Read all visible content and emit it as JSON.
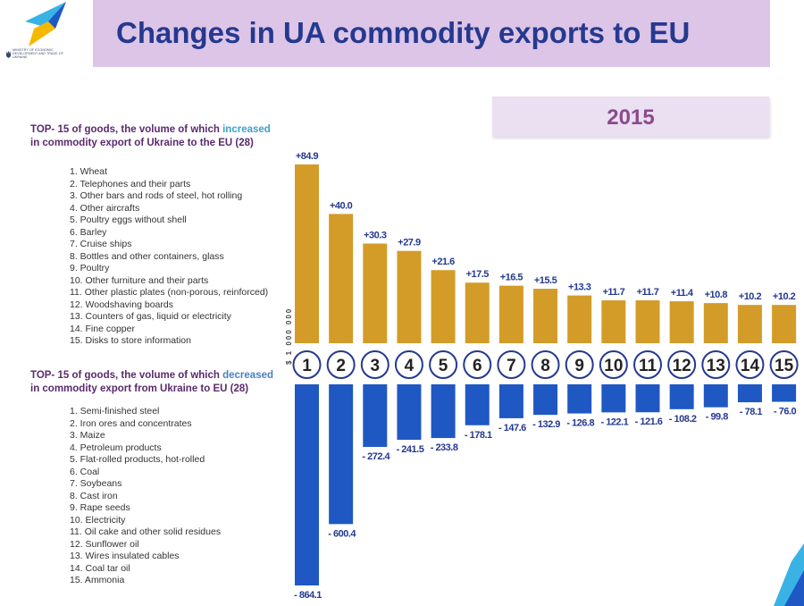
{
  "header": {
    "title": "Changes in UA commodity exports to EU",
    "logo_text": "MINISTRY OF ECONOMIC DEVELOPMENT AND TRADE OF UKRAINE"
  },
  "year_label": "2015",
  "increased": {
    "heading_prefix": "TOP- 15 of goods, the volume of which ",
    "heading_keyword": "increased",
    "heading_line2": "in commodity export of Ukraine to the EU (28)",
    "items": [
      "1. Wheat",
      "2. Telephones and their parts",
      "3. Other bars and rods of steel, hot rolling",
      "4. Other aircrafts",
      "5. Poultry eggs without shell",
      "6. Barley",
      "7. Cruise ships",
      "8. Bottles and other containers, glass",
      "9. Poultry",
      "10. Other furniture and their parts",
      "11. Other plastic plates (non-porous, reinforced)",
      "12. Woodshaving boards",
      "13. Counters of gas, liquid or electricity",
      "14. Fine copper",
      "15. Disks to store information"
    ]
  },
  "decreased": {
    "heading_prefix": "TOP- 15 of goods, the volume of which ",
    "heading_keyword": "decreased",
    "heading_line2": "in commodity export from Ukraine to EU (28)",
    "items": [
      "1. Semi-finished steel",
      "2. Iron ores and concentrates",
      "3. Maize",
      "4. Petroleum products",
      "5. Flat-rolled products, hot-rolled",
      "6. Coal",
      "7. Soybeans",
      "8. Cast iron",
      "9. Rape seeds",
      "10. Electricity",
      "11. Oil cake and other solid residues",
      "12. Sunflower oil",
      "13. Wires insulated cables",
      "14. Coal tar oil",
      "15. Ammonia"
    ]
  },
  "chart_data": {
    "type": "bar",
    "ylabel": "$ 1 000 000",
    "categories": [
      "1",
      "2",
      "3",
      "4",
      "5",
      "6",
      "7",
      "8",
      "9",
      "10",
      "11",
      "12",
      "13",
      "14",
      "15"
    ],
    "series": [
      {
        "values": [
          84.9,
          40.0,
          30.3,
          27.9,
          21.6,
          17.5,
          16.5,
          15.5,
          13.3,
          11.7,
          11.7,
          11.4,
          10.8,
          10.2,
          10.2
        ],
        "labels": [
          "+84.9",
          "+40.0",
          "+30.3",
          "+27.9",
          "+21.6",
          "+17.5",
          "+16.5",
          "+15.5",
          "+13.3",
          "+11.7",
          "+11.7",
          "+11.4",
          "+10.8",
          "+10.2",
          "+10.2"
        ]
      },
      {
        "values": [
          -864.1,
          -600.4,
          -272.4,
          -241.5,
          -233.8,
          -178.1,
          -147.6,
          -132.9,
          -126.8,
          -122.1,
          -121.6,
          -108.2,
          -99.8,
          -78.1,
          -76.0
        ],
        "labels": [
          "- 864.1",
          "- 600.4",
          "- 272.4",
          "- 241.5",
          "- 233.8",
          "- 178.1",
          "- 147.6",
          "- 132.9",
          "- 126.8",
          "- 122.1",
          "- 121.6",
          "- 108.2",
          "- 99.8",
          "- 78.1",
          "- 76.0"
        ]
      }
    ],
    "colors": {
      "increase": "#d39c28",
      "decrease": "#1f58c2",
      "label_increase": "#25398f",
      "label_decrease": "#25398f",
      "circle_border": "#25398f"
    },
    "grid": false,
    "legend": "none"
  }
}
